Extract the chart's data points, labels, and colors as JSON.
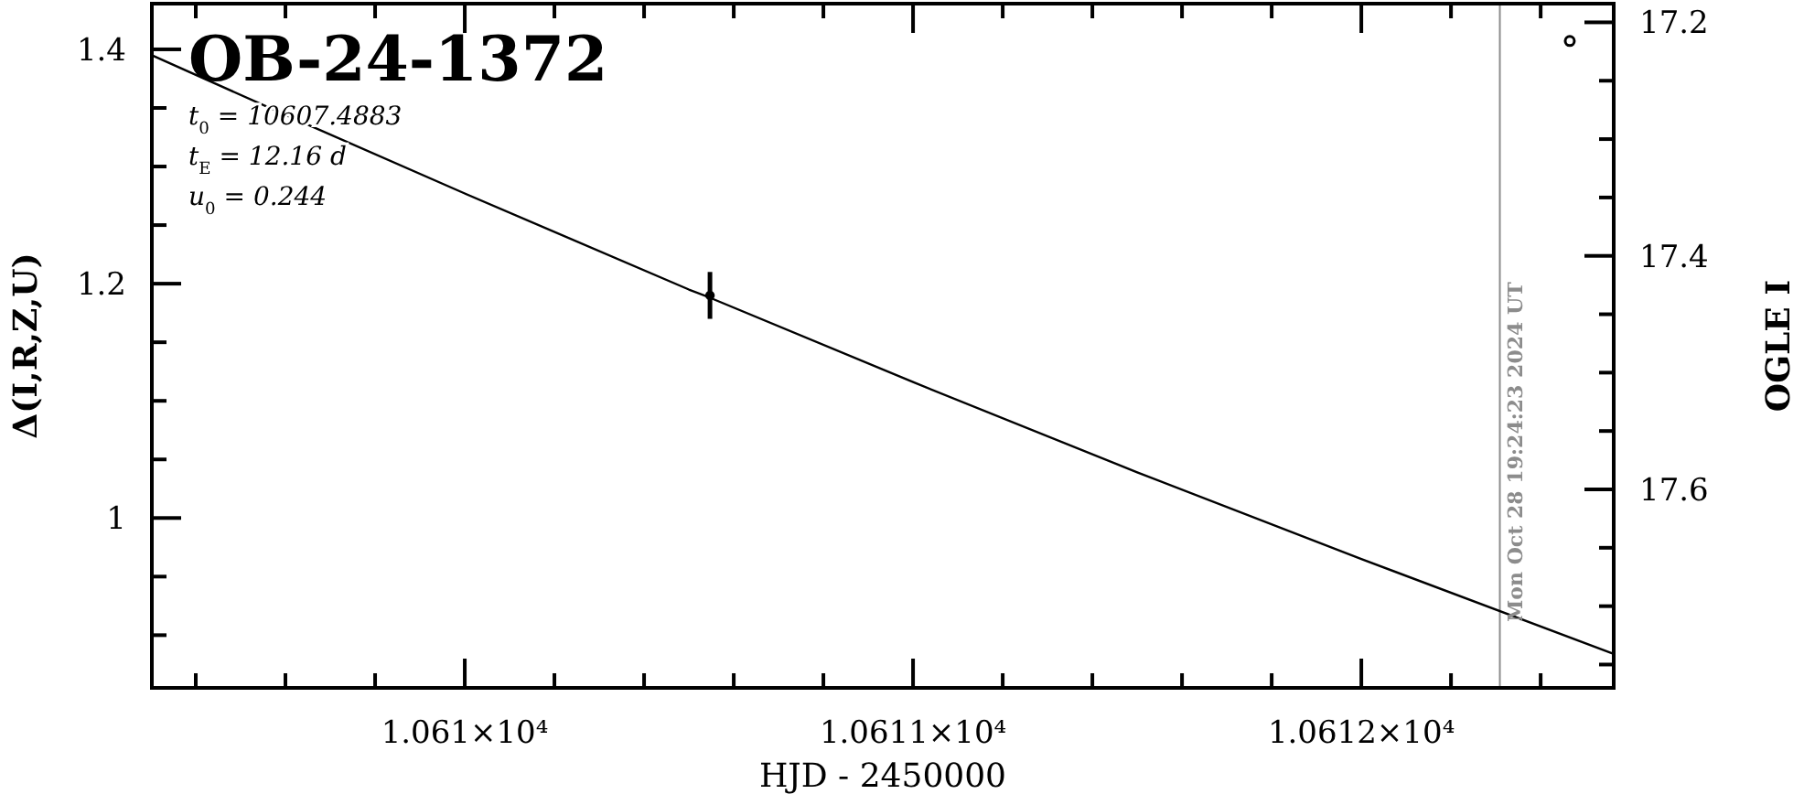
{
  "chart_data": {
    "type": "line",
    "title": "OB-24-1372",
    "xlabel": "HJD - 2450000",
    "ylabel": "Δ(I,R,Z,U)",
    "y2label": "OGLE I",
    "annotations": [
      "t$_{0}$ = 10607.4883",
      "t$_{E}$ = 12.16 d",
      "u$_{0}$ = 0.244",
      "Mon Oct 28 19:24:23 2024 UT"
    ],
    "xlim": [
      10609.302,
      10612.563
    ],
    "ylim": [
      0.855,
      1.439
    ],
    "y2lim": [
      17.77,
      17.184
    ],
    "xticks": [
      {
        "value": 10609.4,
        "label": null
      },
      {
        "value": 10609.6,
        "label": null
      },
      {
        "value": 10609.8,
        "label": null
      },
      {
        "value": 10610,
        "label": "1.061×10⁴"
      },
      {
        "value": 10610.2,
        "label": null
      },
      {
        "value": 10610.4,
        "label": null
      },
      {
        "value": 10610.6,
        "label": null
      },
      {
        "value": 10610.8,
        "label": null
      },
      {
        "value": 10611,
        "label": "1.0611×10⁴"
      },
      {
        "value": 10611.2,
        "label": null
      },
      {
        "value": 10611.4,
        "label": null
      },
      {
        "value": 10611.6,
        "label": null
      },
      {
        "value": 10611.8,
        "label": null
      },
      {
        "value": 10612,
        "label": "1.0612×10⁴"
      },
      {
        "value": 10612.2,
        "label": null
      },
      {
        "value": 10612.4,
        "label": null
      }
    ],
    "yticks": [
      {
        "value": 0.9,
        "label": null
      },
      {
        "value": 0.95,
        "label": null
      },
      1,
      {
        "value": 1.05,
        "label": null
      },
      {
        "value": 1.1,
        "label": null
      },
      {
        "value": 1.15,
        "label": null
      },
      1.2,
      {
        "value": 1.25,
        "label": null
      },
      {
        "value": 1.3,
        "label": null
      },
      {
        "value": 1.35,
        "label": null
      },
      1.4
    ],
    "y2ticks": [
      17.2,
      {
        "value": 17.25,
        "label": null
      },
      {
        "value": 17.3,
        "label": null
      },
      {
        "value": 17.35,
        "label": null
      },
      17.4,
      {
        "value": 17.45,
        "label": null
      },
      {
        "value": 17.5,
        "label": null
      },
      {
        "value": 17.55,
        "label": null
      },
      17.6,
      {
        "value": 17.65,
        "label": null
      },
      {
        "value": 17.7,
        "label": null
      },
      {
        "value": 17.75,
        "label": null
      }
    ],
    "ref_lines": [
      {
        "axis": "x",
        "value": 10612.309,
        "color": "#8c8c8c"
      }
    ],
    "grid": false,
    "series": [
      {
        "color": "#000000",
        "marker": "none",
        "x": [
          10609.302,
          10609.6,
          10610,
          10610.5,
          10610.547,
          10611,
          10611.5,
          10612,
          10612.563
        ],
        "values": [
          1.395,
          1.344,
          1.277,
          1.195,
          1.188,
          1.116,
          1.039,
          0.965,
          0.884
        ]
      },
      {
        "type": "scatter",
        "color": "#000000",
        "x": [
          10610.547
        ],
        "values": [
          1.19
        ],
        "errors": [
          0.02
        ]
      },
      {
        "type": "scatter",
        "color": "#000000",
        "marker": "circle",
        "axis": "y2",
        "x": [
          10612.465
        ],
        "values": [
          17.216
        ]
      }
    ]
  }
}
